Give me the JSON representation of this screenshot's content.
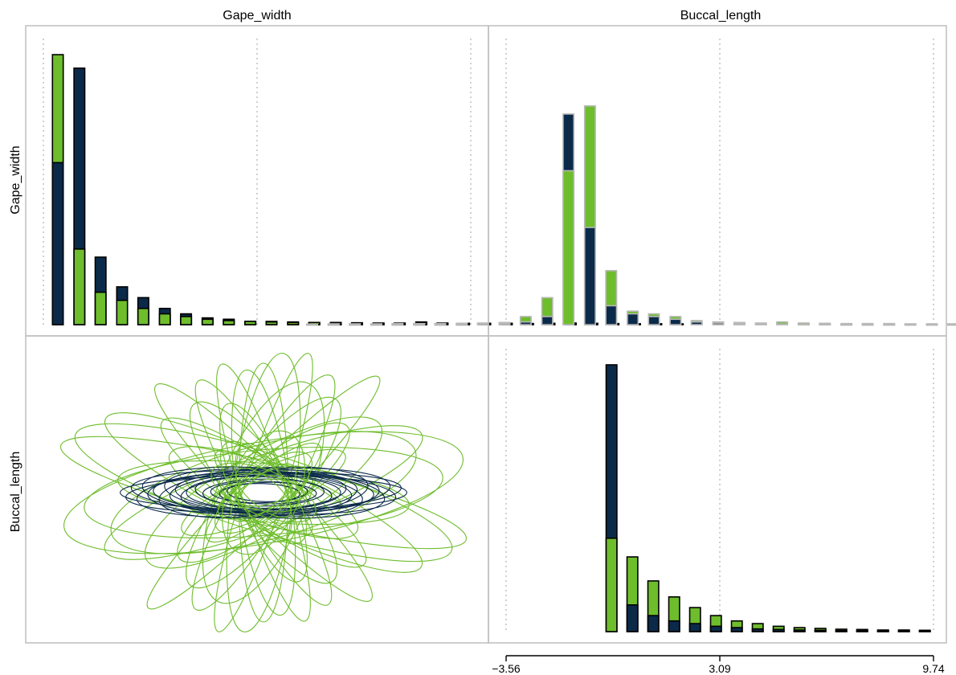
{
  "colors": {
    "group_a": "#0b2a4a",
    "group_b": "#6ebd2c",
    "panel_border": "#bdbdbd",
    "grid": "#b0b0b0"
  },
  "labels": {
    "col1": "Gape_width",
    "col2": "Buccal_length",
    "row1": "Gape_width",
    "row2": "Buccal_length"
  },
  "chart_data": [
    {
      "type": "bar",
      "panel": "Gape_width x Gape_width",
      "grid_vlines": [
        -3.56,
        3.09,
        9.74
      ],
      "x": [
        -3.11,
        -2.44,
        -1.78,
        -1.11,
        -0.45,
        0.22,
        0.88,
        1.55,
        2.21,
        2.88,
        3.54,
        4.21,
        4.87,
        5.54,
        6.2,
        6.87,
        7.53,
        8.2,
        8.86,
        9.53,
        10.19,
        10.86,
        11.52,
        12.19,
        12.85,
        13.52,
        14.18,
        14.85,
        15.51,
        16.18
      ],
      "series": [
        {
          "values": [
            0.6,
            0.95,
            0.25,
            0.14,
            0.1,
            0.06,
            0.04,
            0.025,
            0.02,
            0.012,
            0.012,
            0.01,
            0.008,
            0.008,
            0.007,
            0.006,
            0.006,
            0.01,
            0.006,
            0.005,
            0.005,
            0.005,
            0.004,
            0.005,
            0.006,
            0.005,
            0.004,
            0.003,
            0.003,
            0.003
          ]
        },
        {
          "values": [
            1.0,
            0.28,
            0.12,
            0.09,
            0.06,
            0.04,
            0.03,
            0.02,
            0.015,
            0.012,
            0.01,
            0.008,
            0.008,
            0.007,
            0.006,
            0.005,
            0.005,
            0.008,
            0.005,
            0.004,
            0.004,
            0.004,
            0.004,
            0.004,
            0.005,
            0.004,
            0.003,
            0.003,
            0.003,
            0.002
          ]
        }
      ]
    },
    {
      "type": "bar",
      "panel": "Buccal_length x Gape_width",
      "grid_vlines": [
        -3.56,
        3.09,
        9.74
      ],
      "x": [
        -9.6,
        -8.93,
        -8.27,
        -7.6,
        -6.94,
        -6.27,
        -5.61,
        -4.94,
        -4.28,
        -3.61,
        -2.95,
        -2.28,
        -1.62,
        -0.95,
        -0.29,
        0.38,
        1.04,
        1.71,
        2.37,
        3.04,
        3.7,
        4.37,
        5.03,
        5.7,
        6.36,
        7.03,
        7.69,
        8.36,
        9.02,
        9.69,
        10.35,
        11.02,
        11.68,
        12.35,
        13.01,
        13.68,
        14.34,
        15.01,
        15.67,
        16.34,
        17.0,
        17.67,
        18.33,
        19.0,
        19.66
      ],
      "series": [
        {
          "values": [
            0,
            0,
            0,
            0,
            0,
            0,
            0,
            0,
            0.002,
            0.004,
            0.01,
            0.03,
            0.78,
            0.36,
            0.07,
            0.04,
            0.03,
            0.02,
            0.01,
            0.006,
            0.004,
            0.003,
            0.002,
            0.001,
            0.001,
            0,
            0,
            0,
            0,
            0,
            0,
            0,
            0,
            0,
            0,
            0,
            0,
            0,
            0,
            0,
            0,
            0,
            0,
            0,
            0
          ]
        },
        {
          "values": [
            0.002,
            0.003,
            0.003,
            0.003,
            0.004,
            0.004,
            0.004,
            0.005,
            0.006,
            0.008,
            0.03,
            0.1,
            0.57,
            0.81,
            0.2,
            0.05,
            0.04,
            0.03,
            0.015,
            0.01,
            0.008,
            0.006,
            0.01,
            0.006,
            0.005,
            0.004,
            0.004,
            0.004,
            0.003,
            0.003,
            0.003,
            0.003,
            0.003,
            0.003,
            0.002,
            0.002,
            0.002,
            0.002,
            0.002,
            0.002,
            0.002,
            0.002,
            0.002,
            0.002,
            0.002
          ]
        }
      ]
    },
    {
      "type": "scatter",
      "panel": "Gape_width x Buccal_length",
      "description_shapes": "covariance ellipses",
      "series": [
        {
          "group": "a",
          "ellipses": [
            {
              "cx": 0.0,
              "cy": 0.0,
              "rx": 1.3,
              "ry": 0.15,
              "angle": 0
            },
            {
              "cx": 0.0,
              "cy": 0.0,
              "rx": 1.25,
              "ry": 0.17,
              "angle": 2
            },
            {
              "cx": 0.0,
              "cy": 0.0,
              "rx": 1.2,
              "ry": 0.19,
              "angle": -2
            },
            {
              "cx": 0.0,
              "cy": 0.0,
              "rx": 1.15,
              "ry": 0.21,
              "angle": 3
            },
            {
              "cx": 0.0,
              "cy": 0.0,
              "rx": 1.1,
              "ry": 0.22,
              "angle": -3
            },
            {
              "cx": 0.0,
              "cy": 0.0,
              "rx": 1.05,
              "ry": 0.2,
              "angle": 1
            },
            {
              "cx": 0.0,
              "cy": 0.0,
              "rx": 1.0,
              "ry": 0.18,
              "angle": -1
            },
            {
              "cx": 0.0,
              "cy": 0.0,
              "rx": 0.95,
              "ry": 0.22,
              "angle": 4
            },
            {
              "cx": 0.0,
              "cy": 0.0,
              "rx": 0.9,
              "ry": 0.2,
              "angle": -4
            },
            {
              "cx": 0.0,
              "cy": 0.0,
              "rx": 0.85,
              "ry": 0.18,
              "angle": 2
            },
            {
              "cx": 0.0,
              "cy": 0.0,
              "rx": 0.8,
              "ry": 0.17,
              "angle": -2
            },
            {
              "cx": 0.0,
              "cy": 0.0,
              "rx": 0.75,
              "ry": 0.16,
              "angle": 3
            },
            {
              "cx": 0.0,
              "cy": 0.0,
              "rx": 0.7,
              "ry": 0.15,
              "angle": 0
            },
            {
              "cx": 0.0,
              "cy": 0.0,
              "rx": 0.62,
              "ry": 0.14,
              "angle": -3
            },
            {
              "cx": 0.0,
              "cy": 0.0,
              "rx": 0.55,
              "ry": 0.12,
              "angle": 1
            },
            {
              "cx": 0.0,
              "cy": 0.0,
              "rx": 0.48,
              "ry": 0.1,
              "angle": -1
            },
            {
              "cx": 0.0,
              "cy": 0.0,
              "rx": 0.4,
              "ry": 0.09,
              "angle": 2
            },
            {
              "cx": 0.0,
              "cy": 0.0,
              "rx": 0.33,
              "ry": 0.08,
              "angle": -2
            }
          ]
        },
        {
          "group": "b",
          "ellipses": [
            {
              "cx": 0.0,
              "cy": 0.0,
              "rx": 1.85,
              "ry": 0.28,
              "angle": -13
            },
            {
              "cx": 0.0,
              "cy": 0.0,
              "rx": 1.75,
              "ry": 0.35,
              "angle": -17
            },
            {
              "cx": 0.0,
              "cy": 0.0,
              "rx": 1.8,
              "ry": 0.45,
              "angle": 10
            },
            {
              "cx": 0.0,
              "cy": 0.0,
              "rx": 1.6,
              "ry": 0.38,
              "angle": 5
            },
            {
              "cx": 0.0,
              "cy": 0.0,
              "rx": 1.5,
              "ry": 0.32,
              "angle": 20
            },
            {
              "cx": 0.0,
              "cy": 0.0,
              "rx": 1.55,
              "ry": 0.3,
              "angle": -25
            },
            {
              "cx": 0.0,
              "cy": 0.0,
              "rx": 1.3,
              "ry": 0.26,
              "angle": -5
            },
            {
              "cx": 0.0,
              "cy": 0.0,
              "rx": 1.4,
              "ry": 0.42,
              "angle": 15
            },
            {
              "cx": 0.0,
              "cy": 0.0,
              "rx": 1.2,
              "ry": 0.35,
              "angle": 30
            },
            {
              "cx": 0.0,
              "cy": 0.0,
              "rx": 1.1,
              "ry": 0.25,
              "angle": -35
            },
            {
              "cx": 0.0,
              "cy": 0.0,
              "rx": 1.45,
              "ry": 0.2,
              "angle": 45
            },
            {
              "cx": 0.0,
              "cy": 0.0,
              "rx": 1.35,
              "ry": 0.22,
              "angle": -45
            },
            {
              "cx": 0.0,
              "cy": 0.0,
              "rx": 1.2,
              "ry": 0.24,
              "angle": 60
            },
            {
              "cx": 0.0,
              "cy": 0.0,
              "rx": 1.15,
              "ry": 0.22,
              "angle": -60
            },
            {
              "cx": 0.0,
              "cy": 0.0,
              "rx": 1.3,
              "ry": 0.18,
              "angle": 72
            },
            {
              "cx": 0.0,
              "cy": 0.0,
              "rx": 1.2,
              "ry": 0.2,
              "angle": -72
            },
            {
              "cx": 0.0,
              "cy": 0.0,
              "rx": 1.25,
              "ry": 0.28,
              "angle": 82
            },
            {
              "cx": 0.0,
              "cy": 0.0,
              "rx": 1.1,
              "ry": 0.24,
              "angle": -82
            },
            {
              "cx": 0.0,
              "cy": 0.0,
              "rx": 1.15,
              "ry": 0.22,
              "angle": 90
            },
            {
              "cx": 0.0,
              "cy": 0.0,
              "rx": 1.05,
              "ry": 0.3,
              "angle": 52
            },
            {
              "cx": 0.0,
              "cy": 0.0,
              "rx": 1.0,
              "ry": 0.28,
              "angle": -52
            },
            {
              "cx": 0.0,
              "cy": 0.0,
              "rx": 0.95,
              "ry": 0.26,
              "angle": 38
            },
            {
              "cx": 0.0,
              "cy": 0.0,
              "rx": 0.9,
              "ry": 0.25,
              "angle": -22
            },
            {
              "cx": 0.0,
              "cy": 0.0,
              "rx": 1.05,
              "ry": 0.4,
              "angle": 68
            },
            {
              "cx": 0.0,
              "cy": 0.0,
              "rx": 0.85,
              "ry": 0.24,
              "angle": -68
            },
            {
              "cx": 0.0,
              "cy": 0.0,
              "rx": 0.8,
              "ry": 0.2,
              "angle": 25
            },
            {
              "cx": 0.0,
              "cy": 0.0,
              "rx": 0.7,
              "ry": 0.2,
              "angle": -10
            },
            {
              "cx": 0.0,
              "cy": 0.0,
              "rx": 0.65,
              "ry": 0.18,
              "angle": 40
            },
            {
              "cx": 0.0,
              "cy": 0.0,
              "rx": 0.55,
              "ry": 0.16,
              "angle": -40
            },
            {
              "cx": 0.0,
              "cy": 0.0,
              "rx": 0.45,
              "ry": 0.14,
              "angle": 12
            }
          ]
        }
      ]
    },
    {
      "type": "bar",
      "panel": "Buccal_length x Buccal_length",
      "xticks": [
        -3.56,
        3.09,
        9.74
      ],
      "xlim": [
        -3.56,
        9.74
      ],
      "grid_vlines": [
        -3.56,
        3.09,
        9.74
      ],
      "x": [
        -0.28,
        0.37,
        1.02,
        1.67,
        2.32,
        2.97,
        3.62,
        4.27,
        4.92,
        5.57,
        6.22,
        6.87,
        7.52,
        8.17,
        8.82,
        9.47
      ],
      "series": [
        {
          "values": [
            1.0,
            0.1,
            0.06,
            0.04,
            0.03,
            0.02,
            0.015,
            0.01,
            0.008,
            0.006,
            0.005,
            0.004,
            0.004,
            0.003,
            0.003,
            0.002
          ]
        },
        {
          "values": [
            0.35,
            0.28,
            0.19,
            0.13,
            0.09,
            0.06,
            0.04,
            0.03,
            0.02,
            0.015,
            0.012,
            0.009,
            0.008,
            0.006,
            0.006,
            0.005
          ]
        }
      ]
    }
  ]
}
